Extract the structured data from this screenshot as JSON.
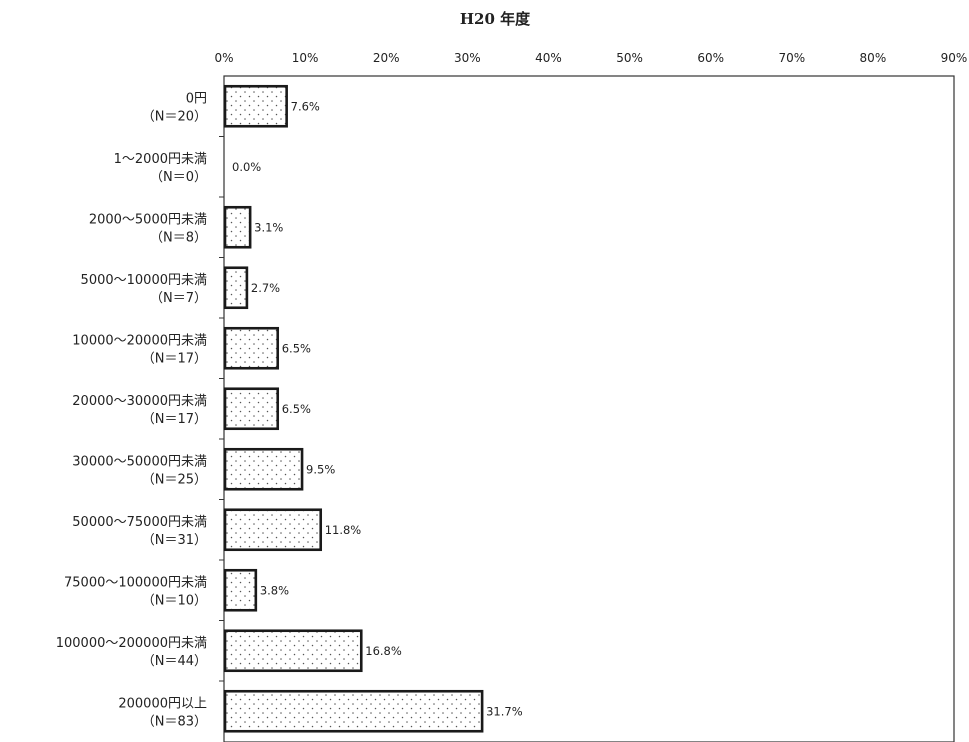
{
  "chart_data": {
    "type": "bar",
    "orientation": "horizontal",
    "title": "H20 年度",
    "xlim": [
      0,
      90
    ],
    "xticks": [
      "0%",
      "10%",
      "20%",
      "30%",
      "40%",
      "50%",
      "60%",
      "70%",
      "80%",
      "90%"
    ],
    "grid": false,
    "categories": [
      [
        "0円",
        "（N＝20）"
      ],
      [
        "1～2000円未満",
        "（N＝0）"
      ],
      [
        "2000～5000円未満",
        "（N＝8）"
      ],
      [
        "5000～10000円未満",
        "（N＝7）"
      ],
      [
        "10000～20000円未満",
        "（N＝17）"
      ],
      [
        "20000～30000円未満",
        "（N＝17）"
      ],
      [
        "30000～50000円未満",
        "（N＝25）"
      ],
      [
        "50000～75000円未満",
        "（N＝31）"
      ],
      [
        "75000～100000円未満",
        "（N＝10）"
      ],
      [
        "100000～200000円未満",
        "（N＝44）"
      ],
      [
        "200000円以上",
        "（N＝83）"
      ]
    ],
    "values": [
      7.6,
      0.0,
      3.1,
      2.7,
      6.5,
      6.5,
      9.5,
      11.8,
      3.8,
      16.8,
      31.7
    ],
    "value_labels": [
      "7.6%",
      "0.0%",
      "3.1%",
      "2.7%",
      "6.5%",
      "6.5%",
      "9.5%",
      "11.8%",
      "3.8%",
      "16.8%",
      "31.7%"
    ]
  }
}
